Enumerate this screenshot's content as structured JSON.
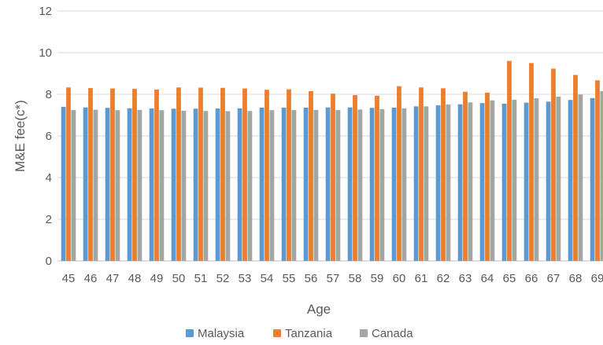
{
  "chart_data": {
    "type": "bar",
    "title": "",
    "xlabel": "Age",
    "ylabel": "M&E fee(c*)",
    "ylim": [
      0,
      12
    ],
    "yticks": [
      0,
      2,
      4,
      6,
      8,
      10,
      12
    ],
    "grid": true,
    "legend_position": "bottom",
    "categories": [
      "45",
      "46",
      "47",
      "48",
      "49",
      "50",
      "51",
      "52",
      "53",
      "54",
      "55",
      "56",
      "57",
      "58",
      "59",
      "60",
      "61",
      "62",
      "63",
      "64",
      "65",
      "66",
      "67",
      "68",
      "69"
    ],
    "series": [
      {
        "name": "Malaysia",
        "color": "#5B9BD5",
        "values": [
          7.4,
          7.37,
          7.35,
          7.33,
          7.32,
          7.31,
          7.31,
          7.32,
          7.33,
          7.36,
          7.36,
          7.36,
          7.37,
          7.37,
          7.35,
          7.36,
          7.42,
          7.47,
          7.52,
          7.58,
          7.55,
          7.6,
          7.65,
          7.73,
          7.82
        ]
      },
      {
        "name": "Tanzania",
        "color": "#ED7D31",
        "values": [
          8.33,
          8.3,
          8.28,
          8.26,
          8.23,
          8.33,
          8.32,
          8.31,
          8.28,
          8.22,
          8.24,
          8.15,
          8.03,
          7.96,
          7.93,
          8.39,
          8.33,
          8.29,
          8.12,
          8.08,
          9.6,
          9.5,
          9.23,
          8.93,
          8.67
        ]
      },
      {
        "name": "Canada",
        "color": "#A5A5A5",
        "values": [
          7.25,
          7.26,
          7.24,
          7.25,
          7.24,
          7.21,
          7.2,
          7.19,
          7.2,
          7.24,
          7.25,
          7.25,
          7.25,
          7.27,
          7.29,
          7.33,
          7.42,
          7.51,
          7.61,
          7.71,
          7.74,
          7.81,
          7.89,
          7.99,
          8.15
        ]
      }
    ]
  }
}
